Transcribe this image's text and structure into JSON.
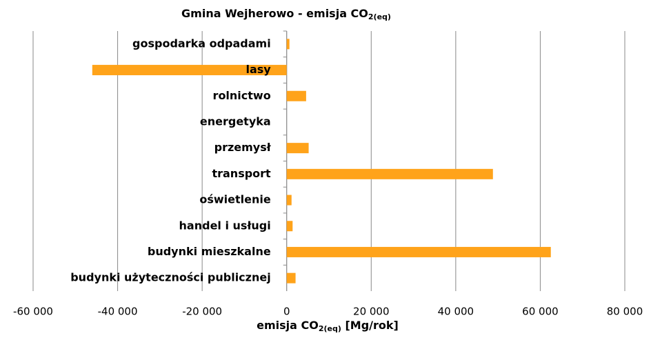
{
  "chart_data": {
    "type": "barh",
    "title": [
      "Gmina Wejherowo - emisja CO",
      "2(eq)"
    ],
    "xlabel": [
      "emisja CO",
      "2(eq)",
      " [Mg/rok]"
    ],
    "categories": [
      "gospodarka odpadami",
      "lasy",
      "rolnictwo",
      "energetyka",
      "przemysł",
      "transport",
      "oświetlenie",
      "handel i usługi",
      "budynki mieszkalne",
      "budynki użyteczności publicznej"
    ],
    "values": [
      650,
      -46000,
      4600,
      0,
      5200,
      48800,
      1150,
      1400,
      62500,
      2100
    ],
    "color": "#ffa31a",
    "xlim": [
      -60000,
      80000
    ],
    "xticks": [
      {
        "value": -60000,
        "label": "-60 000"
      },
      {
        "value": -40000,
        "label": "-40 000"
      },
      {
        "value": -20000,
        "label": "-20 000"
      },
      0,
      {
        "value": 20000,
        "label": "20 000"
      },
      {
        "value": 40000,
        "label": "40 000"
      },
      {
        "value": 60000,
        "label": "60 000"
      },
      {
        "value": 80000,
        "label": "80 000"
      }
    ],
    "grid": true
  }
}
